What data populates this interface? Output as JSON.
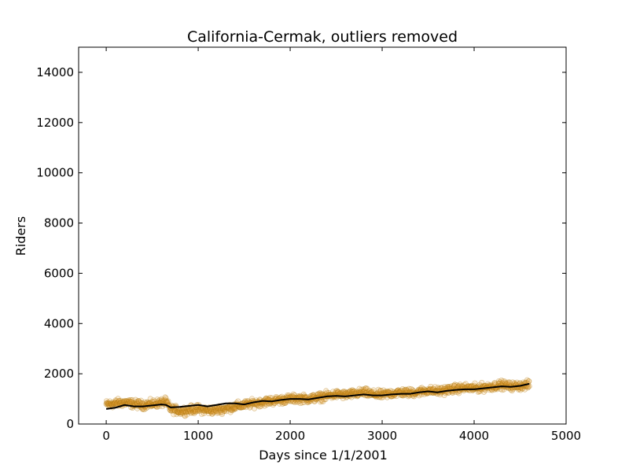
{
  "chart_data": {
    "type": "scatter",
    "title": "California-Cermak, outliers removed",
    "xlabel": "Days since 1/1/2001",
    "ylabel": "Riders",
    "xlim": [
      -300,
      5000
    ],
    "ylim": [
      0,
      15000
    ],
    "xticks": [
      0,
      1000,
      2000,
      3000,
      4000,
      5000
    ],
    "xtick_labels": [
      "0",
      "1000",
      "2000",
      "3000",
      "4000",
      "5000"
    ],
    "yticks": [
      0,
      2000,
      4000,
      6000,
      8000,
      10000,
      12000,
      14000
    ],
    "ytick_labels": [
      "0",
      "2000",
      "4000",
      "6000",
      "8000",
      "10000",
      "12000",
      "14000"
    ],
    "grid": false,
    "series": [
      {
        "kind": "scatter",
        "color": "#e8a33a",
        "edge_color": "#b07a10",
        "x_range": [
          0,
          4600
        ],
        "approx_count": 1400,
        "x": [
          0,
          100,
          200,
          300,
          400,
          500,
          600,
          650,
          700,
          800,
          900,
          1000,
          1100,
          1200,
          1300,
          1400,
          1500,
          1600,
          1700,
          1800,
          1900,
          2000,
          2100,
          2200,
          2300,
          2400,
          2500,
          2600,
          2700,
          2800,
          2900,
          3000,
          3100,
          3200,
          3300,
          3400,
          3500,
          3600,
          3700,
          3800,
          3900,
          4000,
          4100,
          4200,
          4300,
          4400,
          4500,
          4600
        ],
        "y": [
          780,
          820,
          860,
          800,
          760,
          800,
          850,
          880,
          600,
          520,
          560,
          600,
          540,
          560,
          620,
          700,
          760,
          820,
          880,
          920,
          960,
          1000,
          1020,
          1000,
          1060,
          1120,
          1180,
          1160,
          1200,
          1260,
          1180,
          1160,
          1220,
          1260,
          1240,
          1280,
          1340,
          1300,
          1360,
          1400,
          1440,
          1420,
          1460,
          1500,
          1560,
          1500,
          1520,
          1560
        ]
      },
      {
        "kind": "line",
        "color": "#000000",
        "x": [
          0,
          100,
          200,
          300,
          400,
          500,
          600,
          650,
          700,
          800,
          900,
          1000,
          1100,
          1200,
          1300,
          1400,
          1500,
          1600,
          1700,
          1800,
          1900,
          2000,
          2100,
          2200,
          2300,
          2400,
          2500,
          2600,
          2700,
          2800,
          2900,
          3000,
          3100,
          3200,
          3300,
          3400,
          3500,
          3600,
          3700,
          3800,
          3900,
          4000,
          4100,
          4200,
          4300,
          4400,
          4500,
          4600
        ],
        "y": [
          600,
          650,
          760,
          700,
          700,
          740,
          780,
          760,
          660,
          680,
          720,
          760,
          700,
          760,
          820,
          820,
          780,
          860,
          920,
          900,
          960,
          1000,
          1000,
          980,
          1040,
          1100,
          1120,
          1100,
          1140,
          1180,
          1140,
          1140,
          1180,
          1200,
          1200,
          1260,
          1300,
          1260,
          1320,
          1360,
          1380,
          1380,
          1420,
          1460,
          1500,
          1480,
          1520,
          1600
        ]
      }
    ]
  }
}
